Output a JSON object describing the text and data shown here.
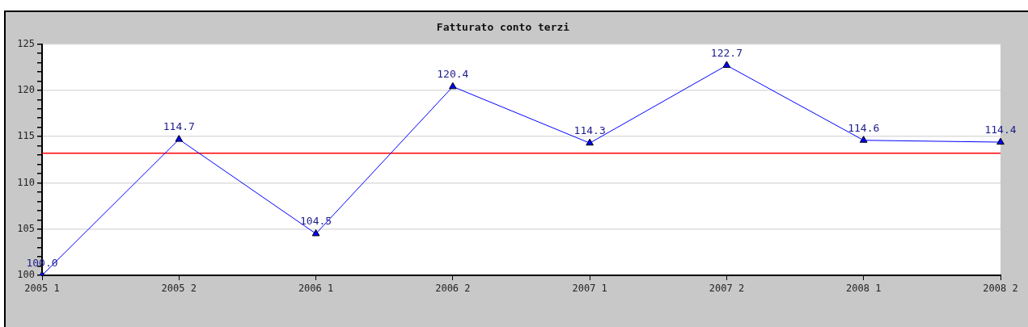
{
  "chart_data": {
    "type": "line",
    "title": "Fatturato conto terzi",
    "categories": [
      "2005 1",
      "2005 2",
      "2006 1",
      "2006 2",
      "2007 1",
      "2007 2",
      "2008 1",
      "2008 2"
    ],
    "series": [
      {
        "color": "#0000ff",
        "values": [
          100.0,
          114.7,
          104.5,
          120.4,
          114.3,
          122.7,
          114.6,
          114.4
        ],
        "value_labels": [
          "100.0",
          "114.7",
          "104.5",
          "120.4",
          "114.3",
          "122.7",
          "114.6",
          "114.4"
        ]
      }
    ],
    "ylim": [
      100,
      125
    ],
    "yticks": [
      100,
      {
        "value": 101,
        "label": null
      },
      {
        "value": 102,
        "label": null
      },
      {
        "value": 103,
        "label": null
      },
      {
        "value": 104,
        "label": null
      },
      105,
      {
        "value": 106,
        "label": null
      },
      {
        "value": 107,
        "label": null
      },
      {
        "value": 108,
        "label": null
      },
      {
        "value": 109,
        "label": null
      },
      110,
      {
        "value": 111,
        "label": null
      },
      {
        "value": 112,
        "label": null
      },
      {
        "value": 113,
        "label": null
      },
      {
        "value": 114,
        "label": null
      },
      115,
      {
        "value": 116,
        "label": null
      },
      {
        "value": 117,
        "label": null
      },
      {
        "value": 118,
        "label": null
      },
      {
        "value": 119,
        "label": null
      },
      120,
      {
        "value": 121,
        "label": null
      },
      {
        "value": 122,
        "label": null
      },
      {
        "value": 123,
        "label": null
      },
      {
        "value": 124,
        "label": null
      },
      125
    ],
    "grid": "y",
    "marker": "triangle",
    "line_style": "solid",
    "ref_lines": [
      {
        "axis": "y",
        "value": 113.2,
        "color": "#ff0000"
      }
    ]
  }
}
